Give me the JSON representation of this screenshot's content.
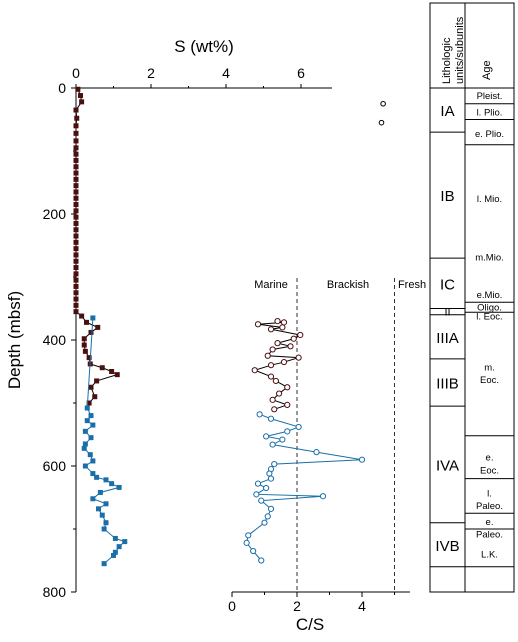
{
  "chart_data": [
    {
      "type": "scatter",
      "title": "",
      "xlabel": "S (wt%)",
      "ylabel": "Depth (mbsf)",
      "xlim": [
        0,
        6.5
      ],
      "ylim": [
        0,
        800
      ],
      "y_inverted": true,
      "x_ticks": [
        "0",
        "2",
        "4",
        "6"
      ],
      "y_ticks": [
        "0",
        "200",
        "400",
        "600",
        "800"
      ],
      "colors": {
        "upper": "#4a1010",
        "lower": "#1a6fa8"
      },
      "series": [
        {
          "color": "upper",
          "points": [
            [
              0.05,
              2
            ],
            [
              0.12,
              12
            ],
            [
              0.15,
              22
            ],
            [
              0.0,
              35
            ],
            [
              0.02,
              48
            ],
            [
              0.0,
              60
            ],
            [
              0.0,
              72
            ],
            [
              0.0,
              84
            ],
            [
              0.0,
              95
            ],
            [
              0.0,
              105
            ],
            [
              0.0,
              115
            ],
            [
              0.0,
              125
            ],
            [
              0.0,
              135
            ],
            [
              0.0,
              145
            ],
            [
              0.0,
              155
            ],
            [
              0.0,
              165
            ],
            [
              0.0,
              175
            ],
            [
              0.0,
              185
            ],
            [
              0.0,
              195
            ],
            [
              0.0,
              205
            ],
            [
              0.0,
              215
            ],
            [
              0.0,
              225
            ],
            [
              0.0,
              235
            ],
            [
              0.0,
              245
            ],
            [
              0.0,
              255
            ],
            [
              0.0,
              265
            ],
            [
              0.0,
              275
            ],
            [
              0.0,
              285
            ],
            [
              0.0,
              295
            ],
            [
              0.0,
              305
            ],
            [
              0.0,
              315
            ],
            [
              0.0,
              325
            ],
            [
              0.0,
              335
            ],
            [
              0.0,
              345
            ],
            [
              0.0,
              355
            ],
            [
              0.15,
              362
            ],
            [
              0.28,
              372
            ],
            [
              0.58,
              380
            ],
            [
              0.4,
              388
            ],
            [
              0.22,
              398
            ],
            [
              0.22,
              408
            ],
            [
              0.25,
              418
            ],
            [
              0.35,
              428
            ],
            [
              0.38,
              438
            ],
            [
              0.7,
              444
            ],
            [
              0.95,
              450
            ],
            [
              1.1,
              455
            ],
            [
              0.55,
              465
            ],
            [
              0.4,
              475
            ],
            [
              0.5,
              490
            ],
            [
              0.35,
              500
            ]
          ]
        },
        {
          "color": "lower",
          "points": [
            [
              0.45,
              365
            ],
            [
              0.3,
              508
            ],
            [
              0.4,
              520
            ],
            [
              0.3,
              528
            ],
            [
              0.45,
              535
            ],
            [
              0.25,
              545
            ],
            [
              0.4,
              555
            ],
            [
              0.25,
              565
            ],
            [
              0.22,
              572
            ],
            [
              0.38,
              582
            ],
            [
              0.45,
              592
            ],
            [
              0.25,
              600
            ],
            [
              0.45,
              612
            ],
            [
              0.55,
              618
            ],
            [
              0.8,
              622
            ],
            [
              0.95,
              628
            ],
            [
              1.15,
              634
            ],
            [
              0.65,
              642
            ],
            [
              0.45,
              652
            ],
            [
              0.8,
              660
            ],
            [
              0.6,
              668
            ],
            [
              0.7,
              678
            ],
            [
              0.8,
              690
            ],
            [
              0.75,
              700
            ],
            [
              1.05,
              715
            ],
            [
              1.3,
              720
            ],
            [
              1.15,
              728
            ],
            [
              1.05,
              737
            ],
            [
              1.0,
              742
            ],
            [
              0.75,
              755
            ]
          ]
        }
      ]
    },
    {
      "type": "scatter",
      "title": "",
      "xlabel": "C/S",
      "ylabel": "",
      "xlim": [
        0,
        6.5
      ],
      "ylim": [
        0,
        800
      ],
      "y_inverted": true,
      "x_ticks": [
        "0",
        "2",
        "4"
      ],
      "reference_lines_x": [
        2,
        5
      ],
      "zone_labels": [
        "Marine",
        "Brackish",
        "Fresh"
      ],
      "series": [
        {
          "color": "upper",
          "points": [
            [
              1.4,
              370
            ],
            [
              1.6,
              372
            ],
            [
              0.8,
              375
            ],
            [
              1.55,
              380
            ],
            [
              1.2,
              383
            ],
            [
              2.1,
              392
            ],
            [
              1.9,
              398
            ],
            [
              1.4,
              405
            ],
            [
              1.8,
              410
            ],
            [
              1.25,
              415
            ],
            [
              1.1,
              425
            ],
            [
              2.05,
              428
            ],
            [
              1.6,
              435
            ],
            [
              1.2,
              440
            ],
            [
              0.7,
              448
            ],
            [
              1.2,
              458
            ],
            [
              1.35,
              465
            ],
            [
              1.7,
              475
            ],
            [
              1.45,
              485
            ],
            [
              1.25,
              495
            ],
            [
              1.7,
              503
            ],
            [
              1.3,
              510
            ]
          ]
        },
        {
          "color": "lower",
          "points": [
            [
              0.85,
              518
            ],
            [
              1.2,
              525
            ],
            [
              2.05,
              538
            ],
            [
              1.7,
              545
            ],
            [
              1.05,
              553
            ],
            [
              1.55,
              558
            ],
            [
              1.25,
              566
            ],
            [
              2.6,
              578
            ],
            [
              4.0,
              590
            ],
            [
              1.3,
              597
            ],
            [
              1.2,
              605
            ],
            [
              1.15,
              612
            ],
            [
              1.2,
              620
            ],
            [
              0.8,
              628
            ],
            [
              1.05,
              635
            ],
            [
              0.75,
              645
            ],
            [
              2.8,
              648
            ],
            [
              0.9,
              655
            ],
            [
              1.2,
              668
            ],
            [
              1.1,
              680
            ],
            [
              1.0,
              690
            ],
            [
              0.5,
              710
            ],
            [
              0.45,
              722
            ],
            [
              0.65,
              735
            ],
            [
              0.9,
              750
            ]
          ]
        }
      ]
    }
  ],
  "off_scale_points": [
    [
      4.65,
      25
    ],
    [
      4.6,
      55
    ]
  ],
  "lithology": {
    "header_units": "Lithologic units/subunits",
    "header_age": "Age",
    "units": [
      {
        "label": "IA",
        "top": 0,
        "bottom": 70
      },
      {
        "label": "IB",
        "top": 70,
        "bottom": 270
      },
      {
        "label": "IC",
        "top": 270,
        "bottom": 350
      },
      {
        "label": "II",
        "top": 350,
        "bottom": 360
      },
      {
        "label": "IIIA",
        "top": 360,
        "bottom": 430
      },
      {
        "label": "IIIB",
        "top": 430,
        "bottom": 505
      },
      {
        "label": "IVA",
        "top": 505,
        "bottom": 690
      },
      {
        "label": "IVB",
        "top": 690,
        "bottom": 760
      }
    ],
    "ages": [
      {
        "label": "Pleist.",
        "y": 12
      },
      {
        "label": "l. Plio.",
        "y": 38
      },
      {
        "label": "e. Plio.",
        "y": 72
      },
      {
        "label": "l. Mio.",
        "y": 175
      },
      {
        "label": "m.Mio.",
        "y": 268
      },
      {
        "label": "e.Mio.",
        "y": 328
      },
      {
        "label": "Oligo.",
        "y": 348
      },
      {
        "label": "l. Eoc.",
        "y": 362
      },
      {
        "label": "m.",
        "y": 443
      },
      {
        "label": "Eoc.",
        "y": 463
      },
      {
        "label": "e.",
        "y": 586
      },
      {
        "label": "Eoc.",
        "y": 606
      },
      {
        "label": "l.",
        "y": 643
      },
      {
        "label": "Paleo.",
        "y": 663
      },
      {
        "label": "e.",
        "y": 688
      },
      {
        "label": "Paleo.",
        "y": 708
      },
      {
        "label": "L.K.",
        "y": 740
      }
    ]
  }
}
